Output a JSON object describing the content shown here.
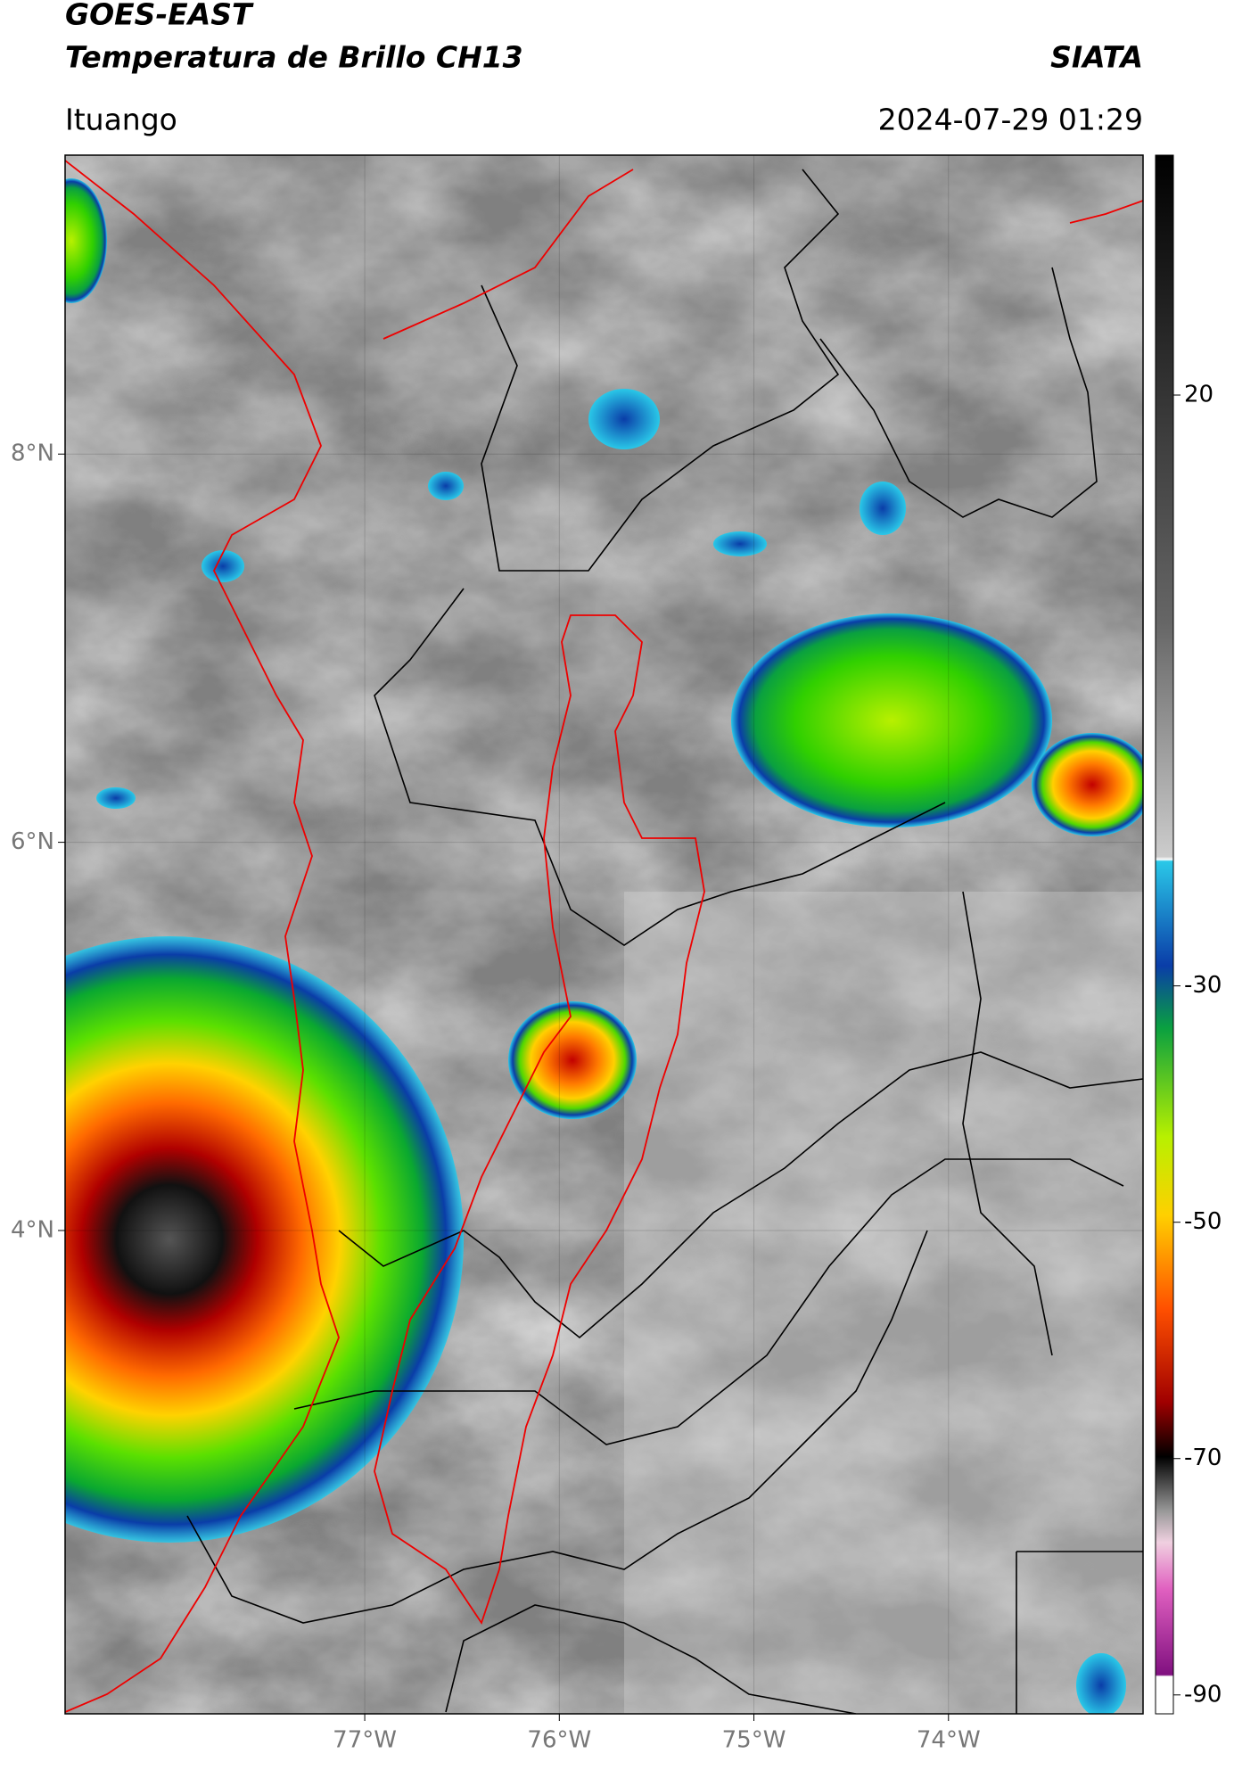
{
  "header": {
    "title": "GOES-EAST",
    "subtitle": "Temperatura de Brillo CH13",
    "brand": "SIATA",
    "location": "Ituango",
    "datetime": "2024-07-29 01:29"
  },
  "map": {
    "lon_range": [
      -78.54,
      -73.0
    ],
    "lat_range": [
      1.51,
      9.54
    ],
    "lon_ticks": [
      {
        "value": -77,
        "label": "77°W"
      },
      {
        "value": -76,
        "label": "76°W"
      },
      {
        "value": -75,
        "label": "75°W"
      },
      {
        "value": -74,
        "label": "74°W"
      }
    ],
    "lat_ticks": [
      {
        "value": 8,
        "label": "8°N"
      },
      {
        "value": 6,
        "label": "6°N"
      },
      {
        "value": 4,
        "label": "4°N"
      }
    ]
  },
  "colorbar": {
    "range": [
      40.3,
      -91.6
    ],
    "ticks": [
      20,
      -30,
      -50,
      -70,
      -90
    ]
  }
}
